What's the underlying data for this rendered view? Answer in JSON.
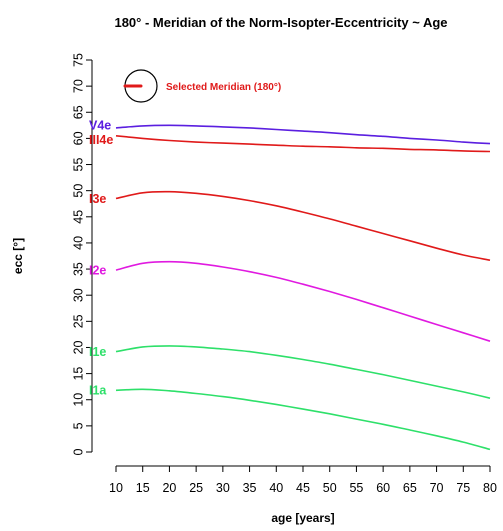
{
  "chart_data": {
    "type": "line",
    "title": "180° - Meridian of the Norm-Isopter-Eccentricity ~ Age",
    "xlabel": "age [years]",
    "ylabel": "ecc [°]",
    "xlim": [
      10,
      80
    ],
    "ylim": [
      0,
      75
    ],
    "x_ticks": [
      10,
      15,
      20,
      25,
      30,
      35,
      40,
      45,
      50,
      55,
      60,
      65,
      70,
      75,
      80
    ],
    "y_ticks": [
      0,
      5,
      10,
      15,
      20,
      25,
      30,
      35,
      40,
      45,
      50,
      55,
      60,
      65,
      70,
      75
    ],
    "grid": false,
    "x": [
      10,
      15,
      20,
      25,
      30,
      35,
      40,
      45,
      50,
      55,
      60,
      65,
      70,
      75,
      80
    ],
    "series": [
      {
        "name": "V4e",
        "color": "#5b1fe0",
        "values": [
          62.0,
          62.4,
          62.5,
          62.4,
          62.2,
          62.0,
          61.7,
          61.4,
          61.1,
          60.7,
          60.4,
          60.0,
          59.7,
          59.3,
          59.0
        ]
      },
      {
        "name": "III4e",
        "color": "#e01a1a",
        "values": [
          60.5,
          60.0,
          59.6,
          59.3,
          59.1,
          58.9,
          58.7,
          58.5,
          58.4,
          58.2,
          58.1,
          57.9,
          57.8,
          57.6,
          57.5
        ]
      },
      {
        "name": "I3e",
        "color": "#e01a1a",
        "values": [
          48.5,
          49.6,
          49.8,
          49.5,
          48.9,
          48.1,
          47.1,
          45.9,
          44.6,
          43.2,
          41.8,
          40.4,
          39.0,
          37.7,
          36.7
        ]
      },
      {
        "name": "I2e",
        "color": "#e01ae0",
        "values": [
          34.8,
          36.1,
          36.4,
          36.1,
          35.4,
          34.5,
          33.4,
          32.1,
          30.7,
          29.2,
          27.6,
          26.0,
          24.4,
          22.8,
          21.2
        ]
      },
      {
        "name": "I1e",
        "color": "#2ee06a",
        "values": [
          19.2,
          20.1,
          20.3,
          20.1,
          19.7,
          19.2,
          18.5,
          17.7,
          16.8,
          15.8,
          14.8,
          13.7,
          12.6,
          11.5,
          10.3
        ]
      },
      {
        "name": "I1a",
        "color": "#2ee06a",
        "values": [
          11.8,
          12.0,
          11.7,
          11.2,
          10.6,
          9.9,
          9.1,
          8.2,
          7.3,
          6.3,
          5.3,
          4.2,
          3.1,
          1.9,
          0.5
        ]
      }
    ],
    "legend": {
      "text": "Selected Meridian (180°)",
      "color": "#e01a1a",
      "placement": "top-left"
    }
  }
}
